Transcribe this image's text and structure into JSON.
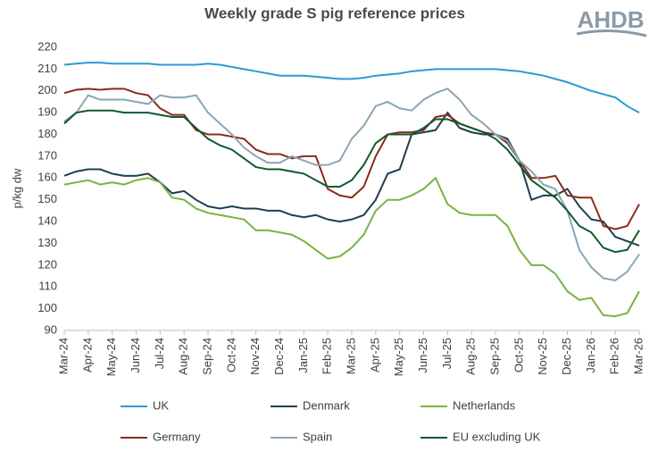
{
  "chart_data": {
    "type": "line",
    "title": "Weekly grade S pig reference prices",
    "logo": "AHDB",
    "y_label": "p/kg dw",
    "categories": [
      "Mar-24",
      null,
      "Apr-24",
      null,
      "May-24",
      null,
      "Jun-24",
      null,
      "Jul-24",
      null,
      "Aug-24",
      null,
      "Sep-24",
      null,
      "Oct-24",
      null,
      "Nov-24",
      null,
      "Dec-24",
      null,
      "Jan-25",
      null,
      "Feb-25",
      null,
      "Mar-25",
      null,
      "Apr-25",
      null,
      "May-25",
      null,
      "Jun-25",
      null,
      "Jul-25",
      null,
      "Aug-25",
      null,
      "Sep-25",
      null,
      "Oct-25",
      null,
      "Nov-25",
      null,
      "Dec-25",
      null,
      "Jan-26",
      null,
      "Feb-26",
      null,
      "Mar-26"
    ],
    "ylim": [
      90,
      220
    ],
    "yticks": [
      90,
      100,
      110,
      120,
      130,
      140,
      150,
      160,
      170,
      180,
      190,
      200,
      210,
      220
    ],
    "grid": false,
    "series": [
      {
        "name": "UK",
        "color": "#2b9ad6",
        "values": [
          212,
          212.5,
          213,
          213,
          212.5,
          212.5,
          212.5,
          212.5,
          212,
          212,
          212,
          212,
          212.5,
          212,
          211,
          210,
          209,
          208,
          207,
          207,
          207,
          206.5,
          206,
          205.5,
          205.5,
          206,
          207,
          207.5,
          208,
          209,
          209.5,
          210,
          210,
          210,
          210,
          210,
          210,
          209.5,
          209,
          208,
          207,
          205.5,
          204,
          202,
          200,
          198.5,
          197,
          193,
          190
        ]
      },
      {
        "name": "Denmark",
        "color": "#1f3f4f",
        "values": [
          161,
          163,
          164,
          164,
          162,
          161,
          161,
          162,
          158,
          153,
          154,
          150,
          147,
          146,
          147,
          146,
          146,
          145,
          145,
          143,
          142,
          143,
          141,
          140,
          141,
          143,
          150,
          162,
          164,
          180,
          181,
          182,
          190,
          183,
          181,
          180,
          180,
          178,
          168,
          150,
          152,
          152,
          155,
          147,
          141,
          140,
          133,
          131,
          129
        ]
      },
      {
        "name": "Netherlands",
        "color": "#7ab342",
        "values": [
          157,
          158,
          159,
          157,
          158,
          157,
          159,
          160,
          158,
          151,
          150,
          146,
          144,
          143,
          142,
          141,
          136,
          136,
          135,
          134,
          131,
          127,
          123,
          124,
          128,
          134,
          145,
          150,
          150,
          152,
          155,
          160,
          148,
          144,
          143,
          143,
          143,
          138,
          127,
          120,
          120,
          116,
          108,
          104,
          105,
          97,
          96.5,
          98,
          108
        ]
      },
      {
        "name": "Germany",
        "color": "#8b2a1a",
        "values": [
          199,
          200.5,
          201,
          200.5,
          201,
          201,
          199,
          198,
          192,
          189,
          189,
          182,
          180,
          180,
          179,
          178,
          173,
          171,
          171,
          169,
          170,
          170,
          155,
          152,
          151,
          156,
          170,
          180,
          181,
          181,
          182,
          188,
          189,
          185,
          183,
          181,
          180,
          176,
          168,
          160,
          160,
          161,
          152,
          151,
          151,
          138,
          136.5,
          138,
          148
        ]
      },
      {
        "name": "Spain",
        "color": "#8aa6b4",
        "values": [
          186,
          190,
          198,
          196,
          196,
          196,
          195,
          194,
          198,
          197,
          197,
          198,
          190,
          185,
          180,
          174,
          170,
          167,
          167,
          170,
          168,
          166,
          166,
          168,
          178,
          184,
          193,
          195,
          192,
          191,
          196,
          199,
          201,
          196,
          189,
          185,
          180,
          177,
          168,
          163,
          157,
          155,
          145,
          127,
          119,
          114,
          113,
          117,
          125
        ]
      },
      {
        "name": "EU excluding UK",
        "color": "#0e5a2e",
        "values": [
          185,
          190,
          191,
          191,
          191,
          190,
          190,
          190,
          189,
          188,
          188,
          183,
          178,
          175,
          173,
          169,
          165,
          164,
          164,
          163,
          162,
          159,
          156,
          156,
          159,
          166,
          176,
          180,
          180,
          180,
          183,
          187,
          187,
          185,
          183,
          181,
          178,
          173,
          166,
          159,
          155,
          151,
          145,
          138,
          135,
          128,
          126,
          127,
          136
        ]
      }
    ]
  }
}
